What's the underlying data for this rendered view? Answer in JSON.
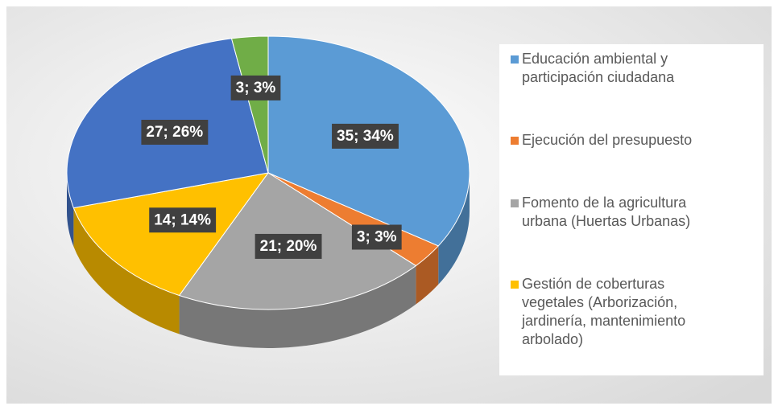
{
  "chart_data": {
    "type": "pie",
    "categories": [
      "Educación ambiental y participación ciudadana",
      "Ejecución del presupuesto",
      "Fomento de la agricultura urbana (Huertas Urbanas)",
      "Gestión de coberturas vegetales (Arborización, jardinería, mantenimiento arbolado)",
      null,
      null
    ],
    "values": [
      35,
      3,
      21,
      14,
      27,
      3
    ],
    "value_labels": [
      "35; 34%",
      "3; 3%",
      "21; 20%",
      "14; 14%",
      "27; 26%",
      "3; 3%"
    ],
    "colors": [
      "#5b9bd5",
      "#ed7d31",
      "#a5a5a5",
      "#ffc000",
      "#4472c4",
      "#70ad47"
    ]
  }
}
